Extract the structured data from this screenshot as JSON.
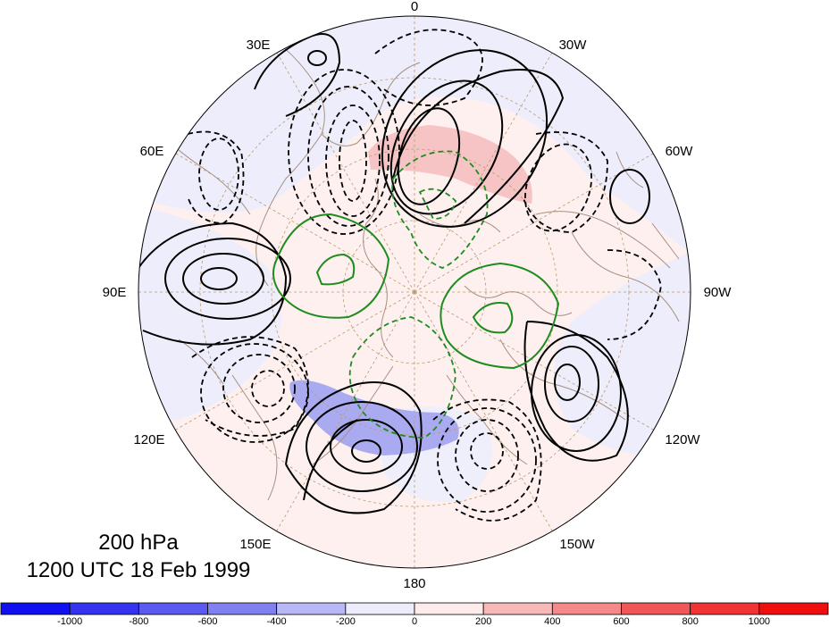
{
  "caption": {
    "level": "200 hPa",
    "time": "1200 UTC 18 Feb 1999"
  },
  "longitude_labels": [
    {
      "lon": 0,
      "text": "0"
    },
    {
      "lon": 30,
      "text": "30W"
    },
    {
      "lon": 60,
      "text": "60W"
    },
    {
      "lon": 90,
      "text": "90W"
    },
    {
      "lon": 120,
      "text": "120W"
    },
    {
      "lon": 150,
      "text": "150W"
    },
    {
      "lon": 180,
      "text": "180"
    },
    {
      "lon": 210,
      "text": "150E"
    },
    {
      "lon": 240,
      "text": "120E"
    },
    {
      "lon": 270,
      "text": "90E"
    },
    {
      "lon": 300,
      "text": "60E"
    },
    {
      "lon": 330,
      "text": "30E"
    }
  ],
  "colorbar": {
    "ticks": [
      "-1000",
      "-800",
      "-600",
      "-400",
      "-200",
      "0",
      "200",
      "400",
      "600",
      "800",
      "1000"
    ],
    "colors": [
      "#0f0ff0",
      "#3434f0",
      "#5a5af0",
      "#8080f0",
      "#b8b8f6",
      "#ececfc",
      "#fdeceb",
      "#f9b8b8",
      "#f58888",
      "#f05858",
      "#f03434",
      "#f00f0f"
    ]
  },
  "colors": {
    "positive_contour": "#000000",
    "negative_contour": "#000000",
    "green_contour": "#1e8c1e",
    "coastline": "#a89080",
    "graticule": "#b89a6e"
  }
}
